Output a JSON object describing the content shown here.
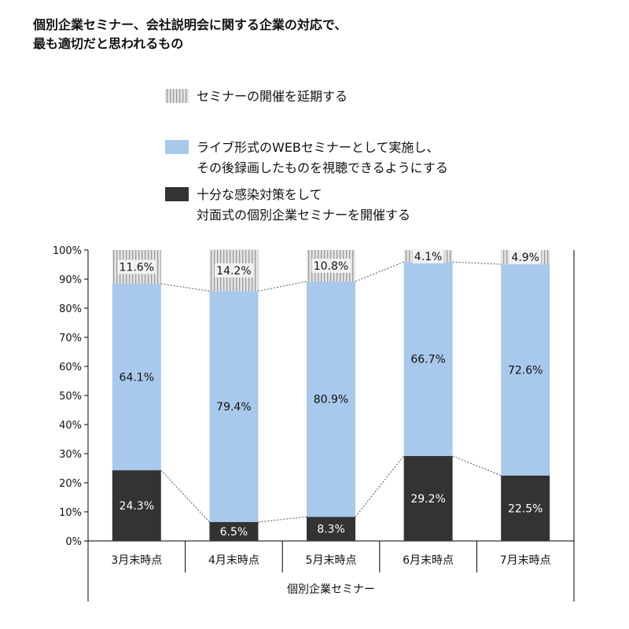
{
  "chart_data": {
    "type": "bar",
    "stacked": true,
    "title_lines": [
      "個別企業セミナー、会社説明会に関する企業の対応で、",
      "最も適切だと思われるもの"
    ],
    "categories": [
      "3月末時点",
      "4月末時点",
      "5月末時点",
      "6月末時点",
      "7月末時点"
    ],
    "group_label": "個別企業セミナー",
    "series": [
      {
        "name_lines": [
          "十分な感染対策をして",
          "対面式の個別企業セミナーを開催する"
        ],
        "color": "#333333",
        "values": [
          24.3,
          6.5,
          8.3,
          29.2,
          22.5
        ],
        "labels": [
          "24.3%",
          "6.5%",
          "8.3%",
          "29.2%",
          "22.5%"
        ],
        "label_color": "#ffffff"
      },
      {
        "name_lines": [
          "ライブ形式のWEBセミナーとして実施し、",
          "その後録画したものを視聴できるようにする"
        ],
        "color": "#a8c8ec",
        "values": [
          64.1,
          79.4,
          80.9,
          66.7,
          72.6
        ],
        "labels": [
          "64.1%",
          "79.4%",
          "80.9%",
          "66.7%",
          "72.6%"
        ],
        "label_color": "#111111"
      },
      {
        "name_lines": [
          "セミナーの開催を延期する"
        ],
        "color": "#d6d6d6",
        "pattern": "vertical-stripes",
        "values": [
          11.6,
          14.2,
          10.8,
          4.1,
          4.9
        ],
        "labels": [
          "11.6%",
          "14.2%",
          "10.8%",
          "4.1%",
          "4.9%"
        ],
        "label_color": "#111111"
      }
    ],
    "legend_order": [
      2,
      1,
      0
    ],
    "y_ticks": [
      "0%",
      "10%",
      "20%",
      "30%",
      "40%",
      "50%",
      "60%",
      "70%",
      "80%",
      "90%",
      "100%"
    ],
    "ylim": [
      0,
      100
    ],
    "grid": false,
    "legend_position": "top"
  }
}
